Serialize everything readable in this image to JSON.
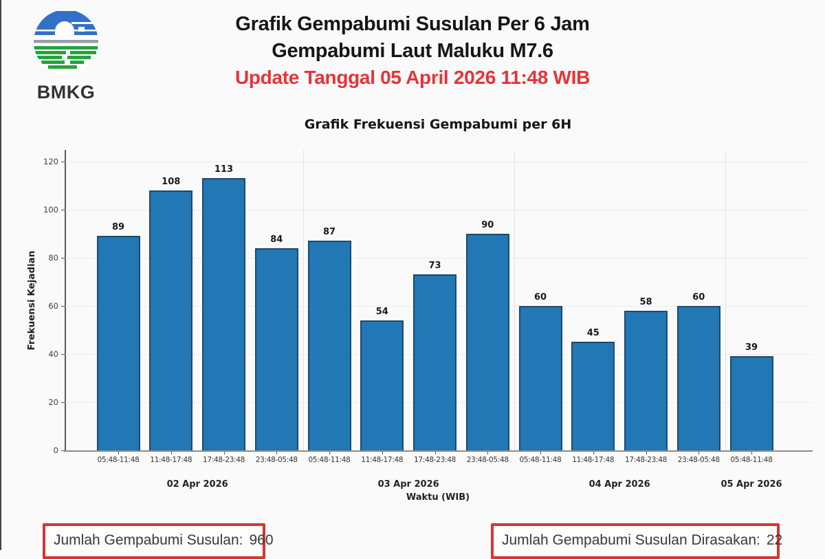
{
  "header": {
    "logo_text": "BMKG",
    "title_line1": "Grafik Gempabumi Susulan Per 6 Jam",
    "title_line2": "Gempabumi Laut Maluku M7.6",
    "update_line": "Update Tanggal 05 April 2026 11:48 WIB",
    "update_color": "#e73338"
  },
  "chart_data": {
    "type": "bar",
    "title": "Grafik Frekuensi Gempabumi per 6H",
    "xlabel": "Waktu (WIB)",
    "ylabel": "Frekuensi Kejadian",
    "ylim": [
      0,
      120
    ],
    "yticks": [
      0,
      20,
      40,
      60,
      80,
      100,
      120
    ],
    "grid": "horizontal-light",
    "legend": "none",
    "bar_color": "#2278b5",
    "bar_edge_color": "#1a4a6d",
    "categories": [
      "05:48-11:48",
      "11:48-17:48",
      "17:48-23:48",
      "23:48-05:48",
      "05:48-11:48",
      "11:48-17:48",
      "17:48-23:48",
      "23:48-05:48",
      "05:48-11:48",
      "11:48-17:48",
      "17:48-23:48",
      "23:48-05:48",
      "05:48-11:48"
    ],
    "values": [
      89,
      108,
      113,
      84,
      87,
      54,
      73,
      90,
      60,
      45,
      58,
      60,
      39
    ],
    "date_groups": [
      {
        "label": "02 Apr 2026",
        "bars": 4
      },
      {
        "label": "03 Apr 2026",
        "bars": 4
      },
      {
        "label": "04 Apr 2026",
        "bars": 4
      },
      {
        "label": "05 Apr 2026",
        "bars": 1
      }
    ]
  },
  "footer": {
    "left_box": {
      "label": "Jumlah Gempabumi Susulan:",
      "value": "960"
    },
    "right_box": {
      "label": "Jumlah Gempabumi Susulan Dirasakan:",
      "value": "22"
    },
    "box_border_color": "#d63434"
  }
}
